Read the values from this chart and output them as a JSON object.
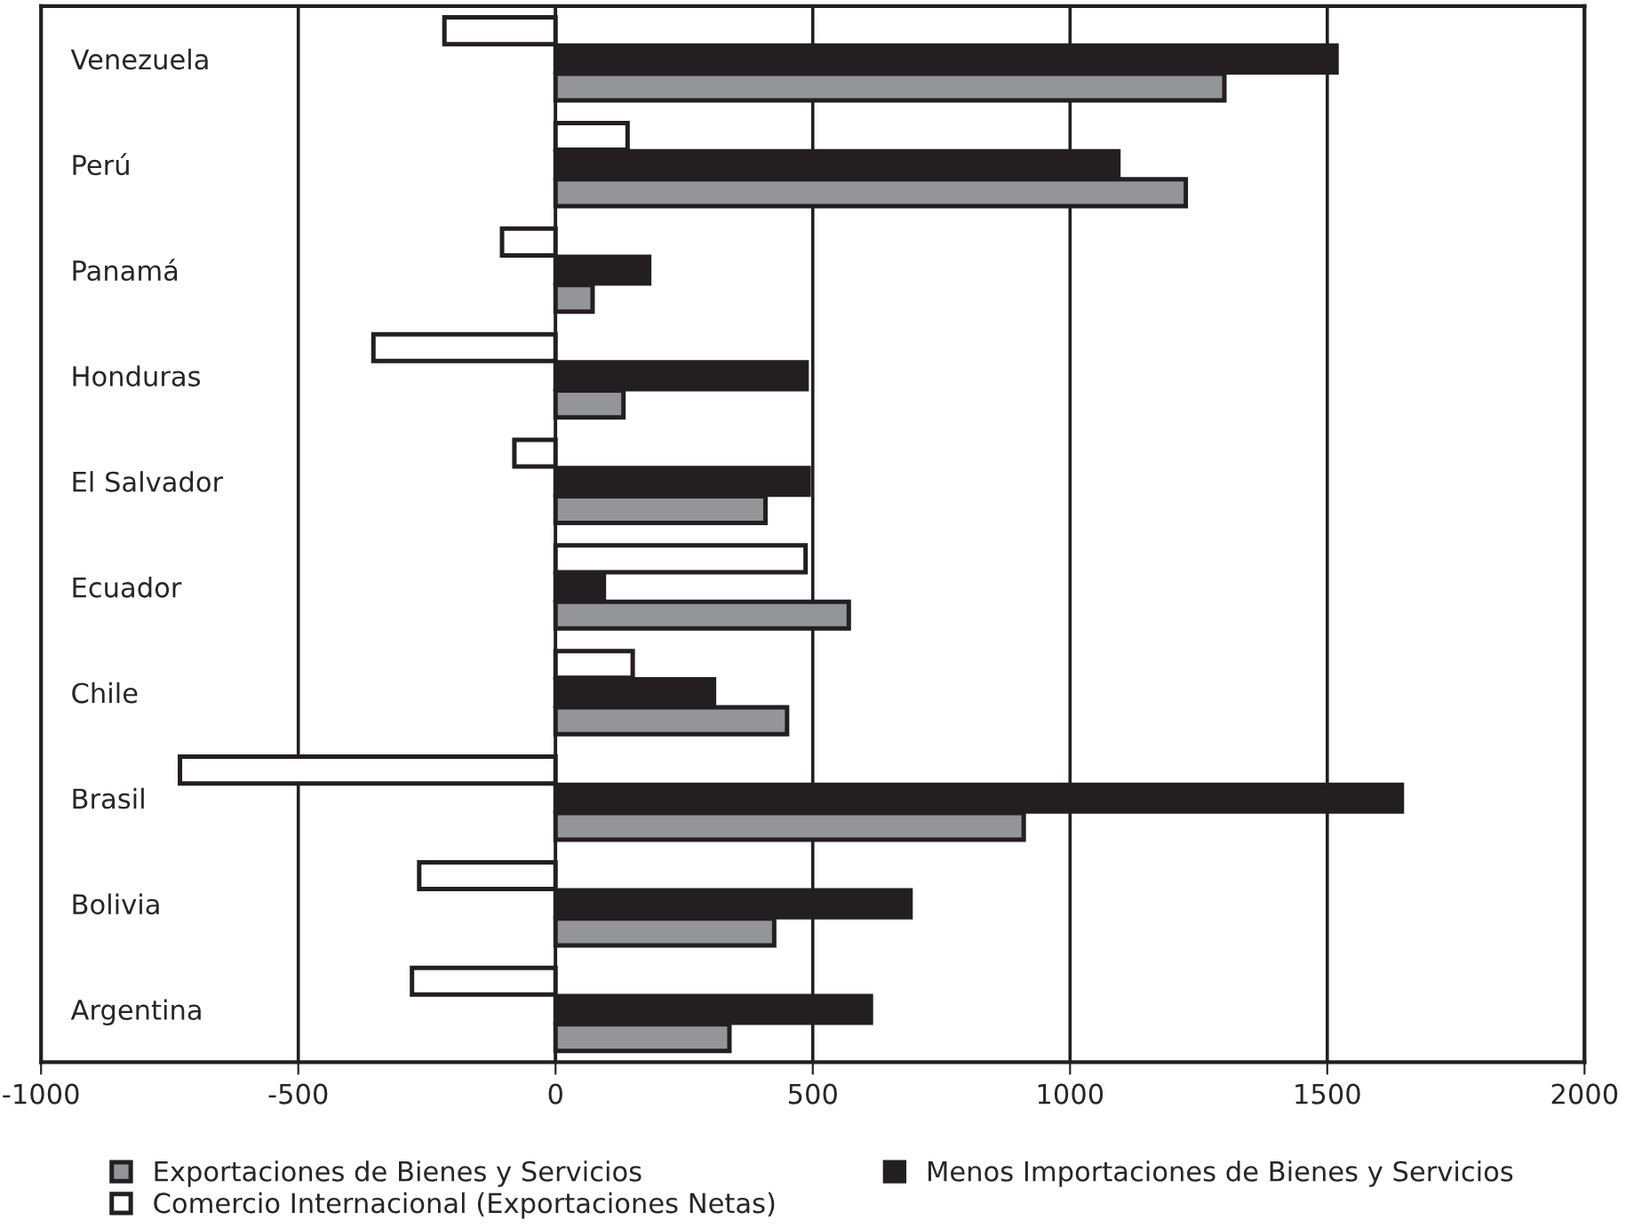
{
  "chart_data": {
    "type": "bar",
    "orientation": "horizontal",
    "categories": [
      "Venezuela",
      "Perú",
      "Panamá",
      "Honduras",
      "El Salvador",
      "Ecuador",
      "Chile",
      "Brasil",
      "Bolivia",
      "Argentina"
    ],
    "series": [
      {
        "name": "Exportaciones de Bienes y Servicios",
        "color": "#939598",
        "values": [
          1300,
          1225,
          72,
          132,
          408,
          570,
          450,
          910,
          425,
          338
        ]
      },
      {
        "name": "Menos Importaciones de Bienes y Servicios",
        "color": "#231f20",
        "values": [
          1518,
          1094,
          182,
          488,
          492,
          94,
          308,
          1645,
          690,
          613
        ]
      },
      {
        "name": "Comercio Internacional (Exportaciones Netas)",
        "color": "#ffffff",
        "values": [
          -216,
          140,
          -104,
          -354,
          -80,
          486,
          150,
          -730,
          -265,
          -279
        ]
      }
    ],
    "xlim": [
      -1000,
      2000
    ],
    "xticks": [
      -1000,
      -500,
      0,
      500,
      1000,
      1500,
      2000
    ],
    "grid": "x",
    "legend": "bottom"
  }
}
